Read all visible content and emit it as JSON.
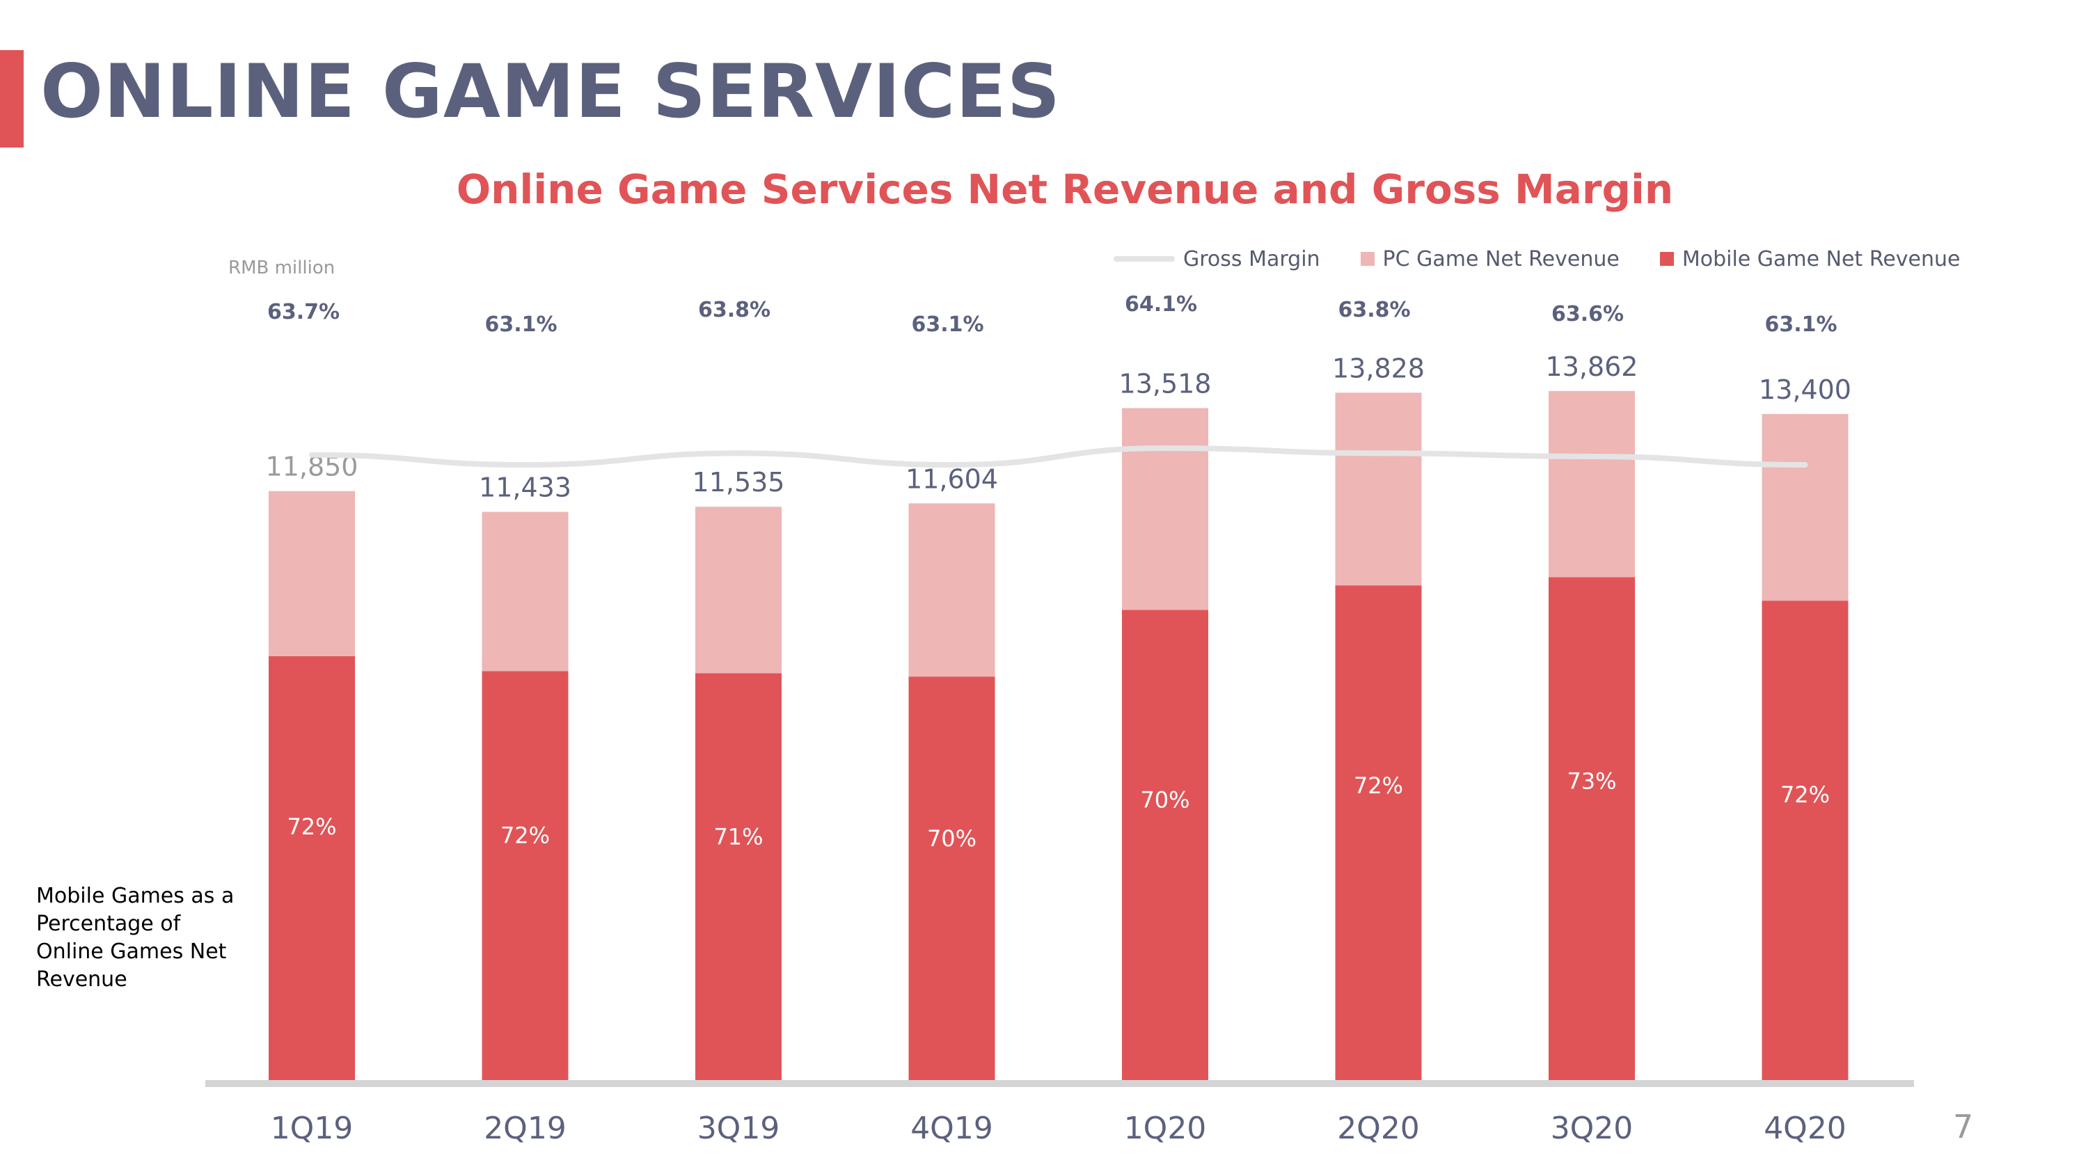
{
  "page": {
    "title": "ONLINE GAME SERVICES",
    "page_number": "7",
    "side_note": "Mobile Games as a Percentage of Online Games Net Revenue",
    "accent_color": "#e05457",
    "title_color": "#5b617d"
  },
  "chart_data": {
    "type": "bar",
    "stacked": true,
    "title": "Online Game Services Net Revenue and Gross Margin",
    "unit_label": "RMB million",
    "categories": [
      "1Q19",
      "2Q19",
      "3Q19",
      "4Q19",
      "1Q20",
      "2Q20",
      "3Q20",
      "4Q20"
    ],
    "totals": [
      11850,
      11433,
      11535,
      11604,
      13518,
      13828,
      13862,
      13400
    ],
    "total_labels": [
      "11,850",
      "11,433",
      "11,535",
      "11,604",
      "13,518",
      "13,828",
      "13,862",
      "13,400"
    ],
    "series": [
      {
        "name": "Mobile Game Net Revenue",
        "color": "#e05457",
        "values": [
          8532,
          8232,
          8190,
          8123,
          9463,
          9956,
          10119,
          9648
        ],
        "share_labels": [
          "72%",
          "72%",
          "71%",
          "70%",
          "70%",
          "72%",
          "73%",
          "72%"
        ]
      },
      {
        "name": "PC Game Net Revenue",
        "color": "#eeb6b5",
        "values": [
          3318,
          3201,
          3345,
          3481,
          4055,
          3872,
          3743,
          3752
        ]
      }
    ],
    "gross_margin": {
      "name": "Gross Margin",
      "color": "#e4e4e4",
      "values": [
        63.7,
        63.1,
        63.8,
        63.1,
        64.1,
        63.8,
        63.6,
        63.1
      ],
      "labels": [
        "63.7%",
        "63.1%",
        "63.8%",
        "63.1%",
        "64.1%",
        "63.8%",
        "63.6%",
        "63.1%"
      ]
    },
    "legend_position": "top-right",
    "grid": false
  }
}
